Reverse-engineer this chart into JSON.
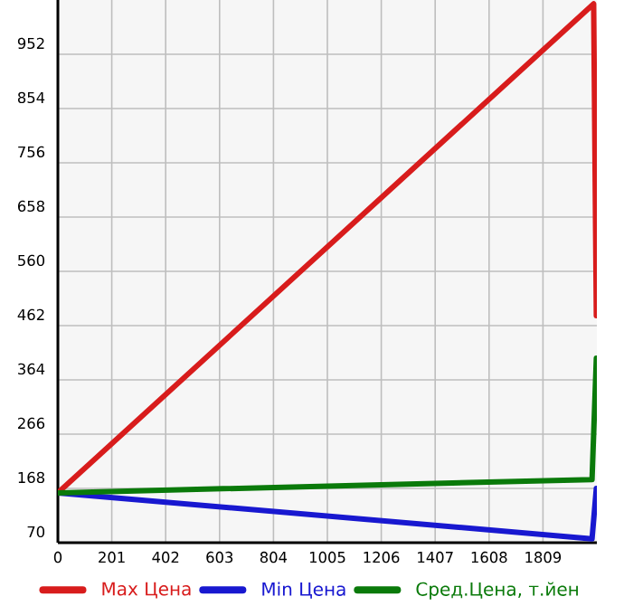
{
  "chart_data": {
    "type": "line",
    "xlim": [
      0,
      2010
    ],
    "ylim": [
      70,
      1050
    ],
    "xticks": [
      0,
      201,
      402,
      603,
      804,
      1005,
      1206,
      1407,
      1608,
      1809
    ],
    "yticks": [
      70,
      168,
      266,
      364,
      462,
      560,
      658,
      756,
      854,
      952
    ],
    "grid": true,
    "legend": "bottom",
    "series": [
      {
        "name": "Max Цена",
        "color": "#d81c1c",
        "x": [
          0,
          1998,
          2008
        ],
        "values": [
          160,
          1043,
          480
        ]
      },
      {
        "name": "Min Цена",
        "color": "#1818d0",
        "x": [
          0,
          1992,
          2008
        ],
        "values": [
          160,
          77,
          168
        ]
      },
      {
        "name": "Сред.Цена, т.йен",
        "color": "#0a7a0a",
        "x": [
          0,
          1992,
          2008
        ],
        "values": [
          160,
          184,
          403
        ]
      }
    ]
  }
}
